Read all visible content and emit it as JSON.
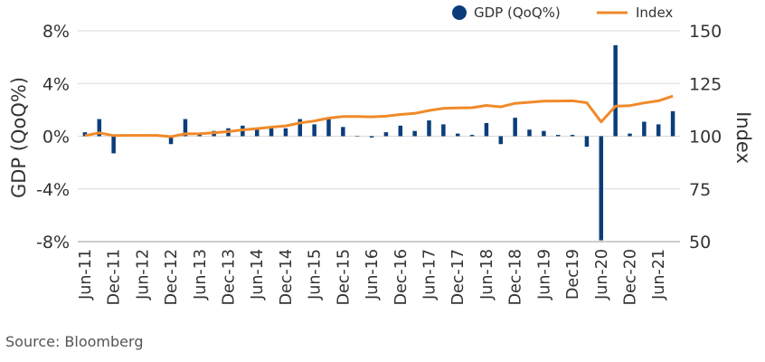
{
  "chart_data": {
    "type": "bar",
    "combo": "bar + line (dual axis)",
    "title": "",
    "ylabel_left": "GDP (QoQ%)",
    "ylabel_right": "Index",
    "ylim_left": [
      -8,
      8
    ],
    "ylim_right": [
      50,
      150
    ],
    "yticks_left": [
      "8%",
      "4%",
      "0%",
      "-4%",
      "-8%"
    ],
    "yticks_left_values": [
      8,
      4,
      0,
      -4,
      -8
    ],
    "yticks_right": [
      "150",
      "125",
      "100",
      "75",
      "50"
    ],
    "yticks_right_values": [
      150,
      125,
      100,
      75,
      50
    ],
    "xtick_labels": [
      "Jun-11",
      "Dec-11",
      "Jun-12",
      "Dec-12",
      "Jun-13",
      "Dec-13",
      "Jun-14",
      "Dec-14",
      "Jun-15",
      "Dec-15",
      "Jun-16",
      "Dec-16",
      "Jun-17",
      "Dec-17",
      "Jun-18",
      "Dec-18",
      "Jun-19",
      "Dec19",
      "Jun-20",
      "Dec-20",
      "Jun-21"
    ],
    "grid": "horizontal",
    "legend_position": "top-right",
    "categories": [
      "Jun-11",
      "Sep-11",
      "Dec-11",
      "Mar-12",
      "Jun-12",
      "Sep-12",
      "Dec-12",
      "Mar-13",
      "Jun-13",
      "Sep-13",
      "Dec-13",
      "Mar-14",
      "Jun-14",
      "Sep-14",
      "Dec-14",
      "Mar-15",
      "Jun-15",
      "Sep-15",
      "Dec-15",
      "Mar-16",
      "Jun-16",
      "Sep-16",
      "Dec-16",
      "Mar-17",
      "Jun-17",
      "Sep-17",
      "Dec-17",
      "Mar-18",
      "Jun-18",
      "Sep-18",
      "Dec-18",
      "Mar-19",
      "Jun-19",
      "Sep-19",
      "Dec-19",
      "Mar-20",
      "Jun-20",
      "Sep-20",
      "Dec-20",
      "Mar-21",
      "Jun-21",
      "Sep-21"
    ],
    "series": [
      {
        "name": "GDP (QoQ%)",
        "kind": "bar",
        "axis": "left",
        "color": "#0a3d7a",
        "values": [
          0.3,
          1.3,
          -1.3,
          0.1,
          0.0,
          0.0,
          -0.6,
          1.3,
          0.1,
          0.4,
          0.6,
          0.8,
          0.6,
          0.7,
          0.6,
          1.3,
          0.9,
          1.3,
          0.7,
          0.0,
          -0.1,
          0.3,
          0.8,
          0.4,
          1.2,
          0.9,
          0.2,
          0.1,
          1.0,
          -0.6,
          1.4,
          0.5,
          0.4,
          0.1,
          0.1,
          -0.8,
          -7.9,
          6.9,
          0.2,
          1.1,
          0.9,
          1.9
        ]
      },
      {
        "name": "Index",
        "kind": "line",
        "axis": "right",
        "color": "#f08a2a",
        "values": [
          100.3,
          101.6,
          100.3,
          100.4,
          100.4,
          100.4,
          99.8,
          101.1,
          101.2,
          101.6,
          102.2,
          103.0,
          103.6,
          104.3,
          104.9,
          106.3,
          107.2,
          108.6,
          109.3,
          109.3,
          109.2,
          109.5,
          110.3,
          110.8,
          112.2,
          113.2,
          113.4,
          113.5,
          114.6,
          113.9,
          115.6,
          116.1,
          116.6,
          116.7,
          116.8,
          115.9,
          106.8,
          114.2,
          114.5,
          115.8,
          116.8,
          119.0
        ]
      }
    ]
  },
  "source": "Source: Bloomberg"
}
